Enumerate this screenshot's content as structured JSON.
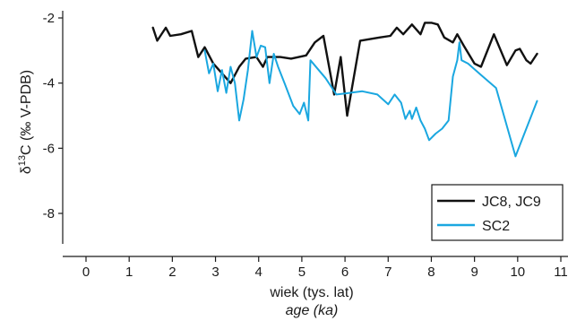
{
  "chart_data": {
    "type": "line",
    "xlabel": "wiek (tys. lat)",
    "xlabel_secondary": "age (ka)",
    "ylabel": "δ13C (‰ V-PDB)",
    "ylabel_parts": {
      "delta": "δ",
      "sup": "13",
      "rest": "C (‰ V-PDB)"
    },
    "xlim": [
      -0.5,
      11.1
    ],
    "ylim": [
      -9.1,
      -1.9
    ],
    "x_ticks": [
      0,
      1,
      2,
      3,
      4,
      5,
      6,
      7,
      8,
      9,
      10,
      11
    ],
    "y_ticks": [
      -2,
      -4,
      -6,
      -8
    ],
    "x_tick_labels": [
      "0",
      "1",
      "2",
      "3",
      "4",
      "5",
      "6",
      "7",
      "8",
      "9",
      "10",
      "11"
    ],
    "y_tick_labels": [
      "-2",
      "-4",
      "-6",
      "-8"
    ],
    "grid": false,
    "legend": {
      "position": "bottom-right"
    },
    "series": [
      {
        "name": "JC8, JC9",
        "color": "#111111",
        "points": [
          [
            1.55,
            -2.3
          ],
          [
            1.65,
            -2.7
          ],
          [
            1.85,
            -2.3
          ],
          [
            1.95,
            -2.55
          ],
          [
            2.2,
            -2.5
          ],
          [
            2.45,
            -2.4
          ],
          [
            2.6,
            -3.2
          ],
          [
            2.75,
            -2.9
          ],
          [
            2.95,
            -3.4
          ],
          [
            3.15,
            -3.7
          ],
          [
            3.35,
            -4.0
          ],
          [
            3.55,
            -3.5
          ],
          [
            3.7,
            -3.25
          ],
          [
            3.95,
            -3.2
          ],
          [
            4.1,
            -3.5
          ],
          [
            4.2,
            -3.2
          ],
          [
            4.5,
            -3.2
          ],
          [
            4.75,
            -3.25
          ],
          [
            5.1,
            -3.15
          ],
          [
            5.3,
            -2.75
          ],
          [
            5.5,
            -2.55
          ],
          [
            5.75,
            -4.35
          ],
          [
            5.9,
            -3.2
          ],
          [
            6.05,
            -5.0
          ],
          [
            6.35,
            -2.7
          ],
          [
            6.8,
            -2.6
          ],
          [
            7.05,
            -2.55
          ],
          [
            7.2,
            -2.3
          ],
          [
            7.35,
            -2.5
          ],
          [
            7.55,
            -2.2
          ],
          [
            7.75,
            -2.5
          ],
          [
            7.85,
            -2.15
          ],
          [
            8.0,
            -2.15
          ],
          [
            8.15,
            -2.2
          ],
          [
            8.3,
            -2.6
          ],
          [
            8.5,
            -2.75
          ],
          [
            8.6,
            -2.5
          ],
          [
            8.75,
            -2.85
          ],
          [
            9.0,
            -3.4
          ],
          [
            9.15,
            -3.5
          ],
          [
            9.45,
            -2.5
          ],
          [
            9.75,
            -3.45
          ],
          [
            9.95,
            -3.0
          ],
          [
            10.05,
            -2.95
          ],
          [
            10.2,
            -3.3
          ],
          [
            10.3,
            -3.4
          ],
          [
            10.45,
            -3.1
          ]
        ]
      },
      {
        "name": "SC2",
        "color": "#1aa7e0",
        "points": [
          [
            2.75,
            -3.0
          ],
          [
            2.85,
            -3.7
          ],
          [
            2.95,
            -3.4
          ],
          [
            3.05,
            -4.25
          ],
          [
            3.15,
            -3.6
          ],
          [
            3.25,
            -4.3
          ],
          [
            3.35,
            -3.5
          ],
          [
            3.45,
            -4.0
          ],
          [
            3.55,
            -5.15
          ],
          [
            3.65,
            -4.5
          ],
          [
            3.75,
            -3.6
          ],
          [
            3.85,
            -2.4
          ],
          [
            3.95,
            -3.2
          ],
          [
            4.05,
            -2.85
          ],
          [
            4.15,
            -2.9
          ],
          [
            4.25,
            -4.0
          ],
          [
            4.35,
            -3.1
          ],
          [
            4.45,
            -3.5
          ],
          [
            4.6,
            -4.0
          ],
          [
            4.8,
            -4.7
          ],
          [
            4.95,
            -4.95
          ],
          [
            5.05,
            -4.6
          ],
          [
            5.15,
            -5.15
          ],
          [
            5.2,
            -3.3
          ],
          [
            5.55,
            -3.85
          ],
          [
            5.8,
            -4.35
          ],
          [
            6.1,
            -4.3
          ],
          [
            6.4,
            -4.25
          ],
          [
            6.75,
            -4.35
          ],
          [
            7.0,
            -4.65
          ],
          [
            7.15,
            -4.35
          ],
          [
            7.3,
            -4.6
          ],
          [
            7.4,
            -5.1
          ],
          [
            7.5,
            -4.85
          ],
          [
            7.55,
            -5.1
          ],
          [
            7.65,
            -4.75
          ],
          [
            7.75,
            -5.15
          ],
          [
            7.85,
            -5.4
          ],
          [
            7.95,
            -5.75
          ],
          [
            8.1,
            -5.55
          ],
          [
            8.25,
            -5.4
          ],
          [
            8.4,
            -5.15
          ],
          [
            8.5,
            -3.8
          ],
          [
            8.6,
            -3.3
          ],
          [
            8.65,
            -2.75
          ],
          [
            8.7,
            -3.3
          ],
          [
            8.85,
            -3.4
          ],
          [
            9.15,
            -3.75
          ],
          [
            9.5,
            -4.15
          ],
          [
            9.95,
            -6.25
          ],
          [
            10.45,
            -4.55
          ]
        ]
      }
    ]
  }
}
